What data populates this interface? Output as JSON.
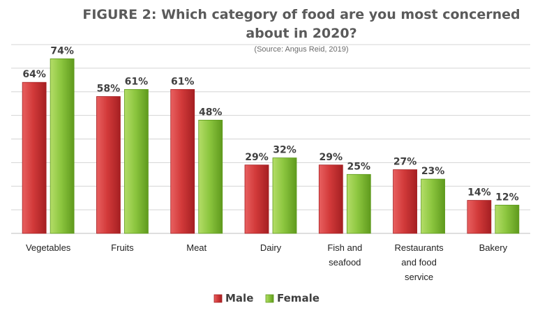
{
  "chart_data": {
    "type": "bar",
    "title": "FIGURE 2: Which category of food are you most concerned about in 2020?",
    "title_lines": [
      "FIGURE 2: Which category of food are you most concerned",
      "about in 2020?"
    ],
    "subtitle": "(Source: Angus Reid, 2019)",
    "categories": [
      "Vegetables",
      "Fruits",
      "Meat",
      "Dairy",
      "Fish and seafood",
      "Restaurants and food service",
      "Bakery"
    ],
    "category_lines": [
      [
        "Vegetables"
      ],
      [
        "Fruits"
      ],
      [
        "Meat"
      ],
      [
        "Dairy"
      ],
      [
        "Fish and",
        "seafood"
      ],
      [
        "Restaurants",
        "and food",
        "service"
      ],
      [
        "Bakery"
      ]
    ],
    "series": [
      {
        "name": "Male",
        "values": [
          64,
          58,
          61,
          29,
          29,
          27,
          14
        ],
        "color": "#d23a3a",
        "color_dark": "#a51f22",
        "color_light": "#e86060"
      },
      {
        "name": "Female",
        "values": [
          74,
          61,
          48,
          32,
          25,
          23,
          12
        ],
        "color": "#8cc63f",
        "color_dark": "#5f9a1d",
        "color_light": "#b4dd68"
      }
    ],
    "value_suffix": "%",
    "ylim": [
      0,
      80
    ],
    "gridlines": true,
    "legend_position": "bottom",
    "xlabel": "",
    "ylabel": ""
  }
}
